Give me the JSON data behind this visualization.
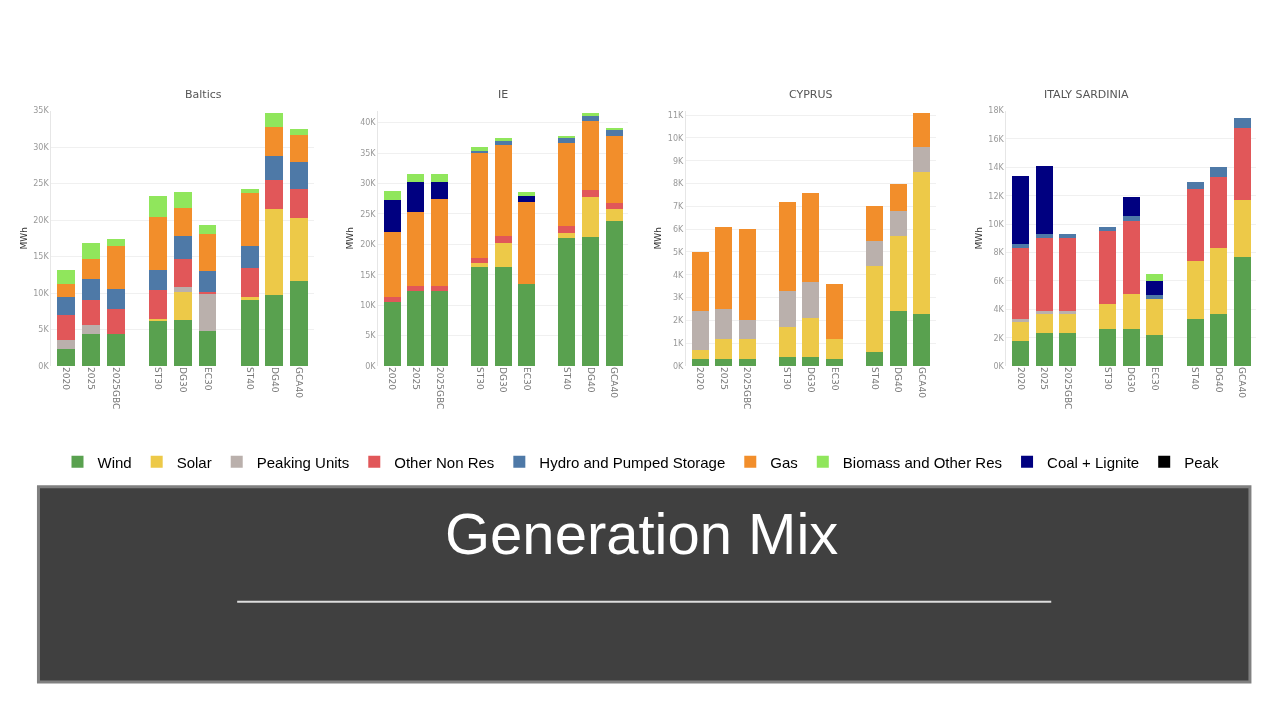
{
  "chart_data": [
    {
      "type": "bar",
      "title": "Baltics",
      "ylabel": "MWh",
      "stacked": true,
      "grid": "y",
      "legend": "bottom",
      "annotations": [
        "Generation Mix"
      ],
      "categories": [
        "2020",
        "2025",
        "2025GBC",
        "ST30",
        "DG30",
        "EC30",
        "ST40",
        "DG40",
        "GCA40"
      ],
      "ylim": [
        0,
        35000
      ],
      "yticks": [
        {
          "value": 0,
          "label": "0K"
        },
        {
          "value": 5000,
          "label": "5K"
        },
        {
          "value": 10000,
          "label": "10K"
        },
        {
          "value": 15000,
          "label": "15K"
        },
        {
          "value": 20000,
          "label": "20K"
        },
        {
          "value": 25000,
          "label": "25K"
        },
        {
          "value": 30000,
          "label": "30K"
        },
        {
          "value": 35000,
          "label": "35K"
        }
      ],
      "series": [
        {
          "name": "Wind",
          "color": "#59a14f",
          "values": [
            2400,
            4400,
            4400,
            6300,
            6300,
            4800,
            9000,
            9700,
            11600
          ]
        },
        {
          "name": "Solar",
          "color": "#edc948",
          "values": [
            null,
            null,
            null,
            200,
            3800,
            null,
            400,
            11800,
            8700
          ]
        },
        {
          "name": "Peaking Units",
          "color": "#bab0ac",
          "values": [
            1200,
            1200,
            null,
            null,
            800,
            5100,
            null,
            null,
            null
          ]
        },
        {
          "name": "Other Non Res",
          "color": "#e15759",
          "values": [
            3400,
            3400,
            3400,
            3900,
            3800,
            300,
            4100,
            4000,
            4000
          ]
        },
        {
          "name": "Hydro and Pumped Storage",
          "color": "#4e79a7",
          "values": [
            2500,
            2900,
            2800,
            2800,
            3100,
            2800,
            2900,
            3300,
            3700
          ]
        },
        {
          "name": "Gas",
          "color": "#f28e2b",
          "values": [
            1800,
            2800,
            5800,
            7200,
            3900,
            5100,
            7300,
            4000,
            3600
          ]
        },
        {
          "name": "Biomass and Other Res",
          "color": "#90e65c",
          "values": [
            1900,
            2100,
            1000,
            2900,
            2100,
            1200,
            500,
            1800,
            900
          ]
        }
      ]
    },
    {
      "type": "bar",
      "title": "IE",
      "ylabel": "MWh",
      "stacked": true,
      "grid": "y",
      "legend": "bottom",
      "categories": [
        "2020",
        "2025",
        "2025GBC",
        "ST30",
        "DG30",
        "EC30",
        "ST40",
        "DG40",
        "GCA40"
      ],
      "ylim": [
        0,
        42000
      ],
      "yticks": [
        {
          "value": 0,
          "label": "0K"
        },
        {
          "value": 5000,
          "label": "5K"
        },
        {
          "value": 10000,
          "label": "10K"
        },
        {
          "value": 15000,
          "label": "15K"
        },
        {
          "value": 20000,
          "label": "20K"
        },
        {
          "value": 25000,
          "label": "25K"
        },
        {
          "value": 30000,
          "label": "30K"
        },
        {
          "value": 35000,
          "label": "35K"
        },
        {
          "value": 40000,
          "label": "40K"
        }
      ],
      "series": [
        {
          "name": "Wind",
          "color": "#59a14f",
          "values": [
            10500,
            12300,
            12300,
            16300,
            16300,
            13500,
            21100,
            21200,
            23800
          ]
        },
        {
          "name": "Solar",
          "color": "#edc948",
          "values": [
            null,
            null,
            null,
            600,
            3900,
            null,
            800,
            6600,
            2000
          ]
        },
        {
          "name": "Other Non Res",
          "color": "#e15759",
          "values": [
            800,
            900,
            900,
            900,
            1100,
            null,
            1100,
            1100,
            1000
          ]
        },
        {
          "name": "Gas",
          "color": "#f28e2b",
          "values": [
            10700,
            12100,
            14300,
            17200,
            15100,
            13500,
            13600,
            11400,
            11000
          ]
        },
        {
          "name": "Hydro and Pumped Storage",
          "color": "#4e79a7",
          "values": [
            null,
            null,
            null,
            400,
            600,
            null,
            800,
            800,
            1000
          ]
        },
        {
          "name": "Coal + Lignite",
          "color": "#000080",
          "values": [
            5300,
            4900,
            2700,
            null,
            null,
            900,
            null,
            null,
            null
          ]
        },
        {
          "name": "Peak",
          "color": "#000000",
          "values": [
            null,
            null,
            null,
            null,
            null,
            null,
            null,
            null,
            null
          ]
        },
        {
          "name": "Biomass and Other Res",
          "color": "#90e65c",
          "values": [
            1500,
            1300,
            1300,
            600,
            500,
            700,
            400,
            500,
            400
          ]
        }
      ]
    },
    {
      "type": "bar",
      "title": "CYPRUS",
      "ylabel": "MWh",
      "stacked": true,
      "grid": "y",
      "legend": "bottom",
      "categories": [
        "2020",
        "2025",
        "2025GBC",
        "ST30",
        "DG30",
        "EC30",
        "ST40",
        "DG40",
        "GCA40"
      ],
      "ylim": [
        0,
        11200
      ],
      "yticks": [
        {
          "value": 0,
          "label": "0K"
        },
        {
          "value": 1000,
          "label": "1K"
        },
        {
          "value": 2000,
          "label": "2K"
        },
        {
          "value": 3000,
          "label": "3K"
        },
        {
          "value": 4000,
          "label": "4K"
        },
        {
          "value": 5000,
          "label": "5K"
        },
        {
          "value": 6000,
          "label": "6K"
        },
        {
          "value": 7000,
          "label": "7K"
        },
        {
          "value": 8000,
          "label": "8K"
        },
        {
          "value": 9000,
          "label": "9K"
        },
        {
          "value": 10000,
          "label": "10K"
        },
        {
          "value": 11000,
          "label": "11K"
        }
      ],
      "series": [
        {
          "name": "Wind",
          "color": "#59a14f",
          "values": [
            300,
            300,
            300,
            400,
            400,
            300,
            600,
            2400,
            2300
          ]
        },
        {
          "name": "Solar",
          "color": "#edc948",
          "values": [
            400,
            900,
            900,
            1300,
            1700,
            900,
            3800,
            3300,
            6200
          ]
        },
        {
          "name": "Peaking Units",
          "color": "#bab0ac",
          "values": [
            1700,
            1300,
            800,
            1600,
            1600,
            null,
            1100,
            1100,
            1100
          ]
        },
        {
          "name": "Gas",
          "color": "#f28e2b",
          "values": [
            2600,
            3600,
            4000,
            3900,
            3900,
            2400,
            1500,
            1200,
            1500
          ]
        }
      ]
    },
    {
      "type": "bar",
      "title": "ITALY SARDINIA",
      "ylabel": "MWh",
      "stacked": true,
      "grid": "y",
      "legend": "bottom",
      "categories": [
        "2020",
        "2025",
        "2025GBC",
        "ST30",
        "DG30",
        "EC30",
        "ST40",
        "DG40",
        "GCA40"
      ],
      "ylim": [
        0,
        18000
      ],
      "yticks": [
        {
          "value": 0,
          "label": "0K"
        },
        {
          "value": 2000,
          "label": "2K"
        },
        {
          "value": 4000,
          "label": "4K"
        },
        {
          "value": 6000,
          "label": "6K"
        },
        {
          "value": 8000,
          "label": "8K"
        },
        {
          "value": 10000,
          "label": "10K"
        },
        {
          "value": 12000,
          "label": "12K"
        },
        {
          "value": 14000,
          "label": "14K"
        },
        {
          "value": 16000,
          "label": "16K"
        },
        {
          "value": 18000,
          "label": "18K"
        }
      ],
      "series": [
        {
          "name": "Wind",
          "color": "#59a14f",
          "values": [
            1800,
            2300,
            2300,
            2600,
            2600,
            2200,
            3300,
            3700,
            7700
          ]
        },
        {
          "name": "Solar",
          "color": "#edc948",
          "values": [
            1300,
            1400,
            1400,
            1800,
            2500,
            2500,
            4100,
            4600,
            4000
          ]
        },
        {
          "name": "Peaking Units",
          "color": "#bab0ac",
          "values": [
            200,
            200,
            200,
            null,
            null,
            null,
            null,
            null,
            null
          ]
        },
        {
          "name": "Other Non Res",
          "color": "#e15759",
          "values": [
            5000,
            5100,
            5100,
            5100,
            5100,
            null,
            5100,
            5000,
            5100
          ]
        },
        {
          "name": "Hydro and Pumped Storage",
          "color": "#4e79a7",
          "values": [
            300,
            300,
            300,
            300,
            400,
            300,
            500,
            700,
            700
          ]
        },
        {
          "name": "Coal + Lignite",
          "color": "#000080",
          "values": [
            4800,
            4800,
            null,
            null,
            1300,
            1000,
            null,
            null,
            null
          ]
        },
        {
          "name": "Biomass and Other Res",
          "color": "#90e65c",
          "values": [
            null,
            null,
            null,
            null,
            null,
            500,
            null,
            null,
            null
          ]
        }
      ]
    }
  ]
}
